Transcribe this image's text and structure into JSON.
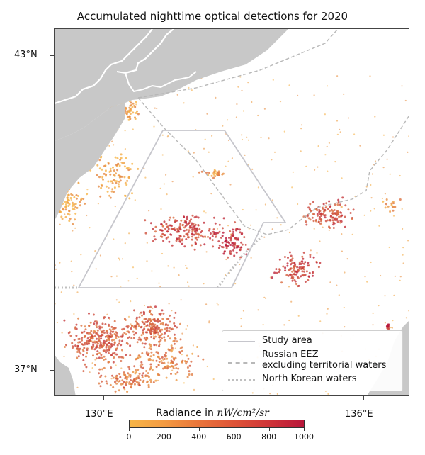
{
  "title": "Accumulated nighttime optical detections for 2020",
  "axes": {
    "lat_labels": [
      "43°N",
      "37°N"
    ],
    "lon_labels": [
      "130°E",
      "136°E"
    ]
  },
  "legend": {
    "study_area": "Study area",
    "eez_line1": "Russian EEZ",
    "eez_line2": "excluding territorial waters",
    "north_korea": "North Korean waters"
  },
  "colorbar": {
    "label_prefix": "Radiance in",
    "label_unit": "nW/cm²/sr",
    "ticks": [
      "0",
      "200",
      "400",
      "600",
      "800",
      "1000"
    ],
    "min": 0,
    "max": 1000
  },
  "colors": {
    "land": "#c8c8c8",
    "border": "#ffffff",
    "study_area": "#c6c6cc",
    "eez": "#b8b8b8",
    "low": "#f7b547",
    "high": "#b8173a"
  }
}
